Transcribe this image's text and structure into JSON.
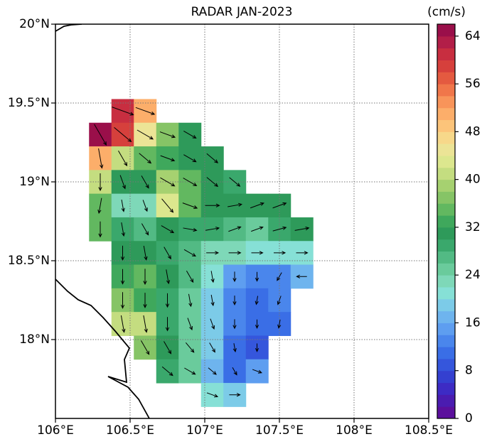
{
  "chart_data": {
    "type": "vector-field",
    "title": "RADAR JAN-2023",
    "colorbar_label": "(cm/s)",
    "xlim": [
      106,
      108.5
    ],
    "ylim": [
      17.5,
      20
    ],
    "xticks": [
      {
        "value": 106,
        "label": "106°E"
      },
      {
        "value": 106.5,
        "label": "106.5°E"
      },
      {
        "value": 107,
        "label": "107°E"
      },
      {
        "value": 107.5,
        "label": "107.5°E"
      },
      {
        "value": 108,
        "label": "108°E"
      },
      {
        "value": 108.5,
        "label": "108.5°E"
      }
    ],
    "yticks": [
      {
        "value": 18,
        "label": "18°N"
      },
      {
        "value": 18.5,
        "label": "18.5°N"
      },
      {
        "value": 19,
        "label": "19°N"
      },
      {
        "value": 19.5,
        "label": "19.5°N"
      },
      {
        "value": 20,
        "label": "20°N"
      }
    ],
    "grid": true,
    "cell_size": 0.15,
    "lons": [
      106.3,
      106.45,
      106.6,
      106.75,
      106.9,
      107.05,
      107.2,
      107.35,
      107.5,
      107.65
    ],
    "lats": [
      19.45,
      19.3,
      19.15,
      19.0,
      18.85,
      18.7,
      18.55,
      18.4,
      18.25,
      18.1,
      17.95,
      17.8,
      17.65
    ],
    "speed": [
      [
        null,
        60,
        50,
        null,
        null,
        null,
        null,
        null,
        null,
        null
      ],
      [
        64,
        58,
        44,
        36,
        30,
        null,
        null,
        null,
        null,
        null
      ],
      [
        50,
        40,
        34,
        32,
        30,
        30,
        null,
        null,
        null,
        null
      ],
      [
        40,
        30,
        30,
        38,
        34,
        30,
        28,
        null,
        null,
        null
      ],
      [
        34,
        22,
        22,
        42,
        34,
        30,
        30,
        30,
        30,
        null
      ],
      [
        34,
        28,
        26,
        30,
        28,
        28,
        26,
        24,
        28,
        30
      ],
      [
        null,
        30,
        30,
        28,
        26,
        22,
        22,
        20,
        20,
        20
      ],
      [
        null,
        32,
        34,
        30,
        26,
        20,
        14,
        12,
        12,
        16
      ],
      [
        null,
        36,
        32,
        28,
        24,
        18,
        12,
        10,
        12,
        null
      ],
      [
        null,
        40,
        40,
        28,
        24,
        18,
        12,
        10,
        10,
        null
      ],
      [
        null,
        null,
        36,
        30,
        24,
        18,
        10,
        8,
        null,
        null
      ],
      [
        null,
        null,
        null,
        28,
        24,
        16,
        10,
        14,
        null,
        null
      ],
      [
        null,
        null,
        null,
        null,
        null,
        20,
        18,
        null,
        null,
        null
      ]
    ],
    "direction": [
      [
        null,
        -20,
        -20,
        null,
        null,
        null,
        null,
        null,
        null,
        null
      ],
      [
        -60,
        -40,
        -30,
        -20,
        -30,
        null,
        null,
        null,
        null,
        null
      ],
      [
        -80,
        -60,
        -40,
        -20,
        -30,
        -40,
        null,
        null,
        null,
        null
      ],
      [
        -90,
        -70,
        -60,
        -30,
        -30,
        -40,
        -40,
        null,
        null,
        null
      ],
      [
        -100,
        -80,
        -70,
        -50,
        -20,
        0,
        10,
        20,
        20,
        null
      ],
      [
        -90,
        -80,
        -60,
        -30,
        -10,
        10,
        20,
        20,
        15,
        10
      ],
      [
        null,
        -90,
        -80,
        -60,
        -30,
        0,
        0,
        0,
        0,
        0
      ],
      [
        null,
        -90,
        -90,
        -80,
        -60,
        -80,
        -90,
        -90,
        -120,
        180
      ],
      [
        null,
        -90,
        -90,
        -90,
        -80,
        -80,
        -90,
        -100,
        -110,
        null
      ],
      [
        null,
        -80,
        -80,
        -90,
        -70,
        -70,
        -90,
        -90,
        -100,
        null
      ],
      [
        null,
        null,
        -60,
        -60,
        -50,
        -60,
        -80,
        -90,
        null,
        null
      ],
      [
        null,
        null,
        null,
        -40,
        -30,
        -40,
        -60,
        -20,
        null,
        null
      ],
      [
        null,
        null,
        null,
        null,
        null,
        -20,
        0,
        null,
        null,
        null
      ]
    ],
    "clim": [
      0,
      66
    ],
    "cticks": [
      0,
      8,
      16,
      24,
      32,
      40,
      48,
      56,
      64
    ],
    "colors": [
      "#5b0f9c",
      "#4a1cb0",
      "#3d2bc4",
      "#3440d0",
      "#3556dc",
      "#3a6ee6",
      "#4a86ec",
      "#5e9ef0",
      "#6eb4ee",
      "#7ccbe8",
      "#86e0d6",
      "#7ed8b8",
      "#6acb9c",
      "#52ba84",
      "#3aa86c",
      "#2e9a5a",
      "#3fa85c",
      "#62b860",
      "#86c466",
      "#a6d170",
      "#c4dd80",
      "#dce78e",
      "#ece496",
      "#f7d88a",
      "#fcc47a",
      "#fcae6a",
      "#f8945a",
      "#f0764a",
      "#e45a40",
      "#d6403c",
      "#c82e40",
      "#b21e48",
      "#9a0f4a"
    ]
  }
}
